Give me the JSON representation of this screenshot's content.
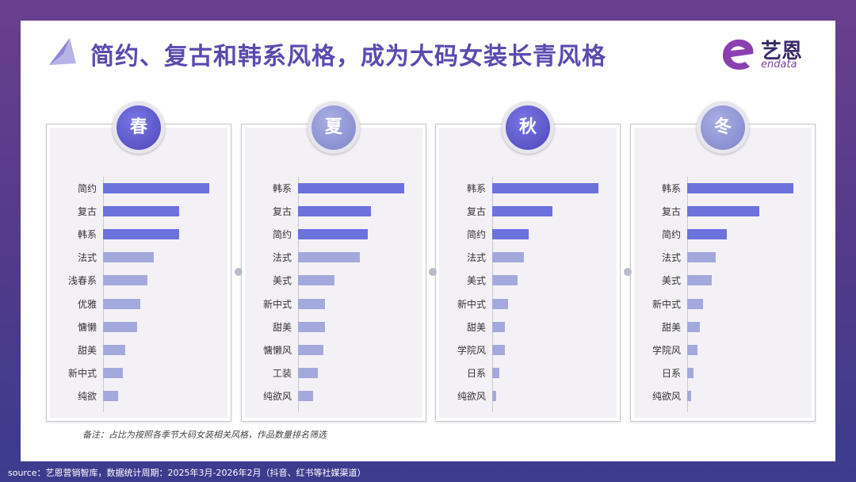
{
  "title": "简约、复古和韩系风格，成为大码女装长青风格",
  "logo": {
    "cn": "艺恩",
    "en": "endata"
  },
  "note": "备注：占比为按照各季节大码女装相关风格，作品数量排名筛选",
  "source": "source：艺恩营销智库，数据统计周期：2025年3月-2026年2月（抖音、红书等社媒渠道）",
  "colors": {
    "accent": "#5a4bb0",
    "bar_top": "#6b72dc",
    "bar_rest": "#a3a9dc",
    "bg": "#5b3a86"
  },
  "chart_data": [
    {
      "type": "bar",
      "orientation": "horizontal",
      "title": "春",
      "categories": [
        "简约",
        "复古",
        "韩系",
        "法式",
        "浅春系",
        "优雅",
        "慵懒",
        "甜美",
        "新中式",
        "纯欲"
      ],
      "values": [
        100,
        72,
        72,
        48,
        42,
        35,
        32,
        21,
        19,
        14
      ],
      "value_unit": "relative share (no axis printed)"
    },
    {
      "type": "bar",
      "orientation": "horizontal",
      "title": "夏",
      "categories": [
        "韩系",
        "复古",
        "简约",
        "法式",
        "美式",
        "新中式",
        "甜美",
        "慵懒风",
        "工装",
        "纯欲风"
      ],
      "values": [
        100,
        69,
        66,
        58,
        34,
        25,
        25,
        24,
        19,
        14
      ],
      "value_unit": "relative share (no axis printed)"
    },
    {
      "type": "bar",
      "orientation": "horizontal",
      "title": "秋",
      "categories": [
        "韩系",
        "复古",
        "简约",
        "法式",
        "美式",
        "新中式",
        "甜美",
        "学院风",
        "日系",
        "纯欲风"
      ],
      "values": [
        100,
        57,
        34,
        30,
        24,
        15,
        12,
        12,
        7,
        4
      ],
      "value_unit": "relative share (no axis printed)"
    },
    {
      "type": "bar",
      "orientation": "horizontal",
      "title": "冬",
      "categories": [
        "韩系",
        "复古",
        "简约",
        "法式",
        "美式",
        "新中式",
        "甜美",
        "学院风",
        "日系",
        "纯欲风"
      ],
      "values": [
        100,
        68,
        37,
        27,
        23,
        15,
        12,
        10,
        6,
        4
      ],
      "value_unit": "relative share (no axis printed)"
    }
  ]
}
